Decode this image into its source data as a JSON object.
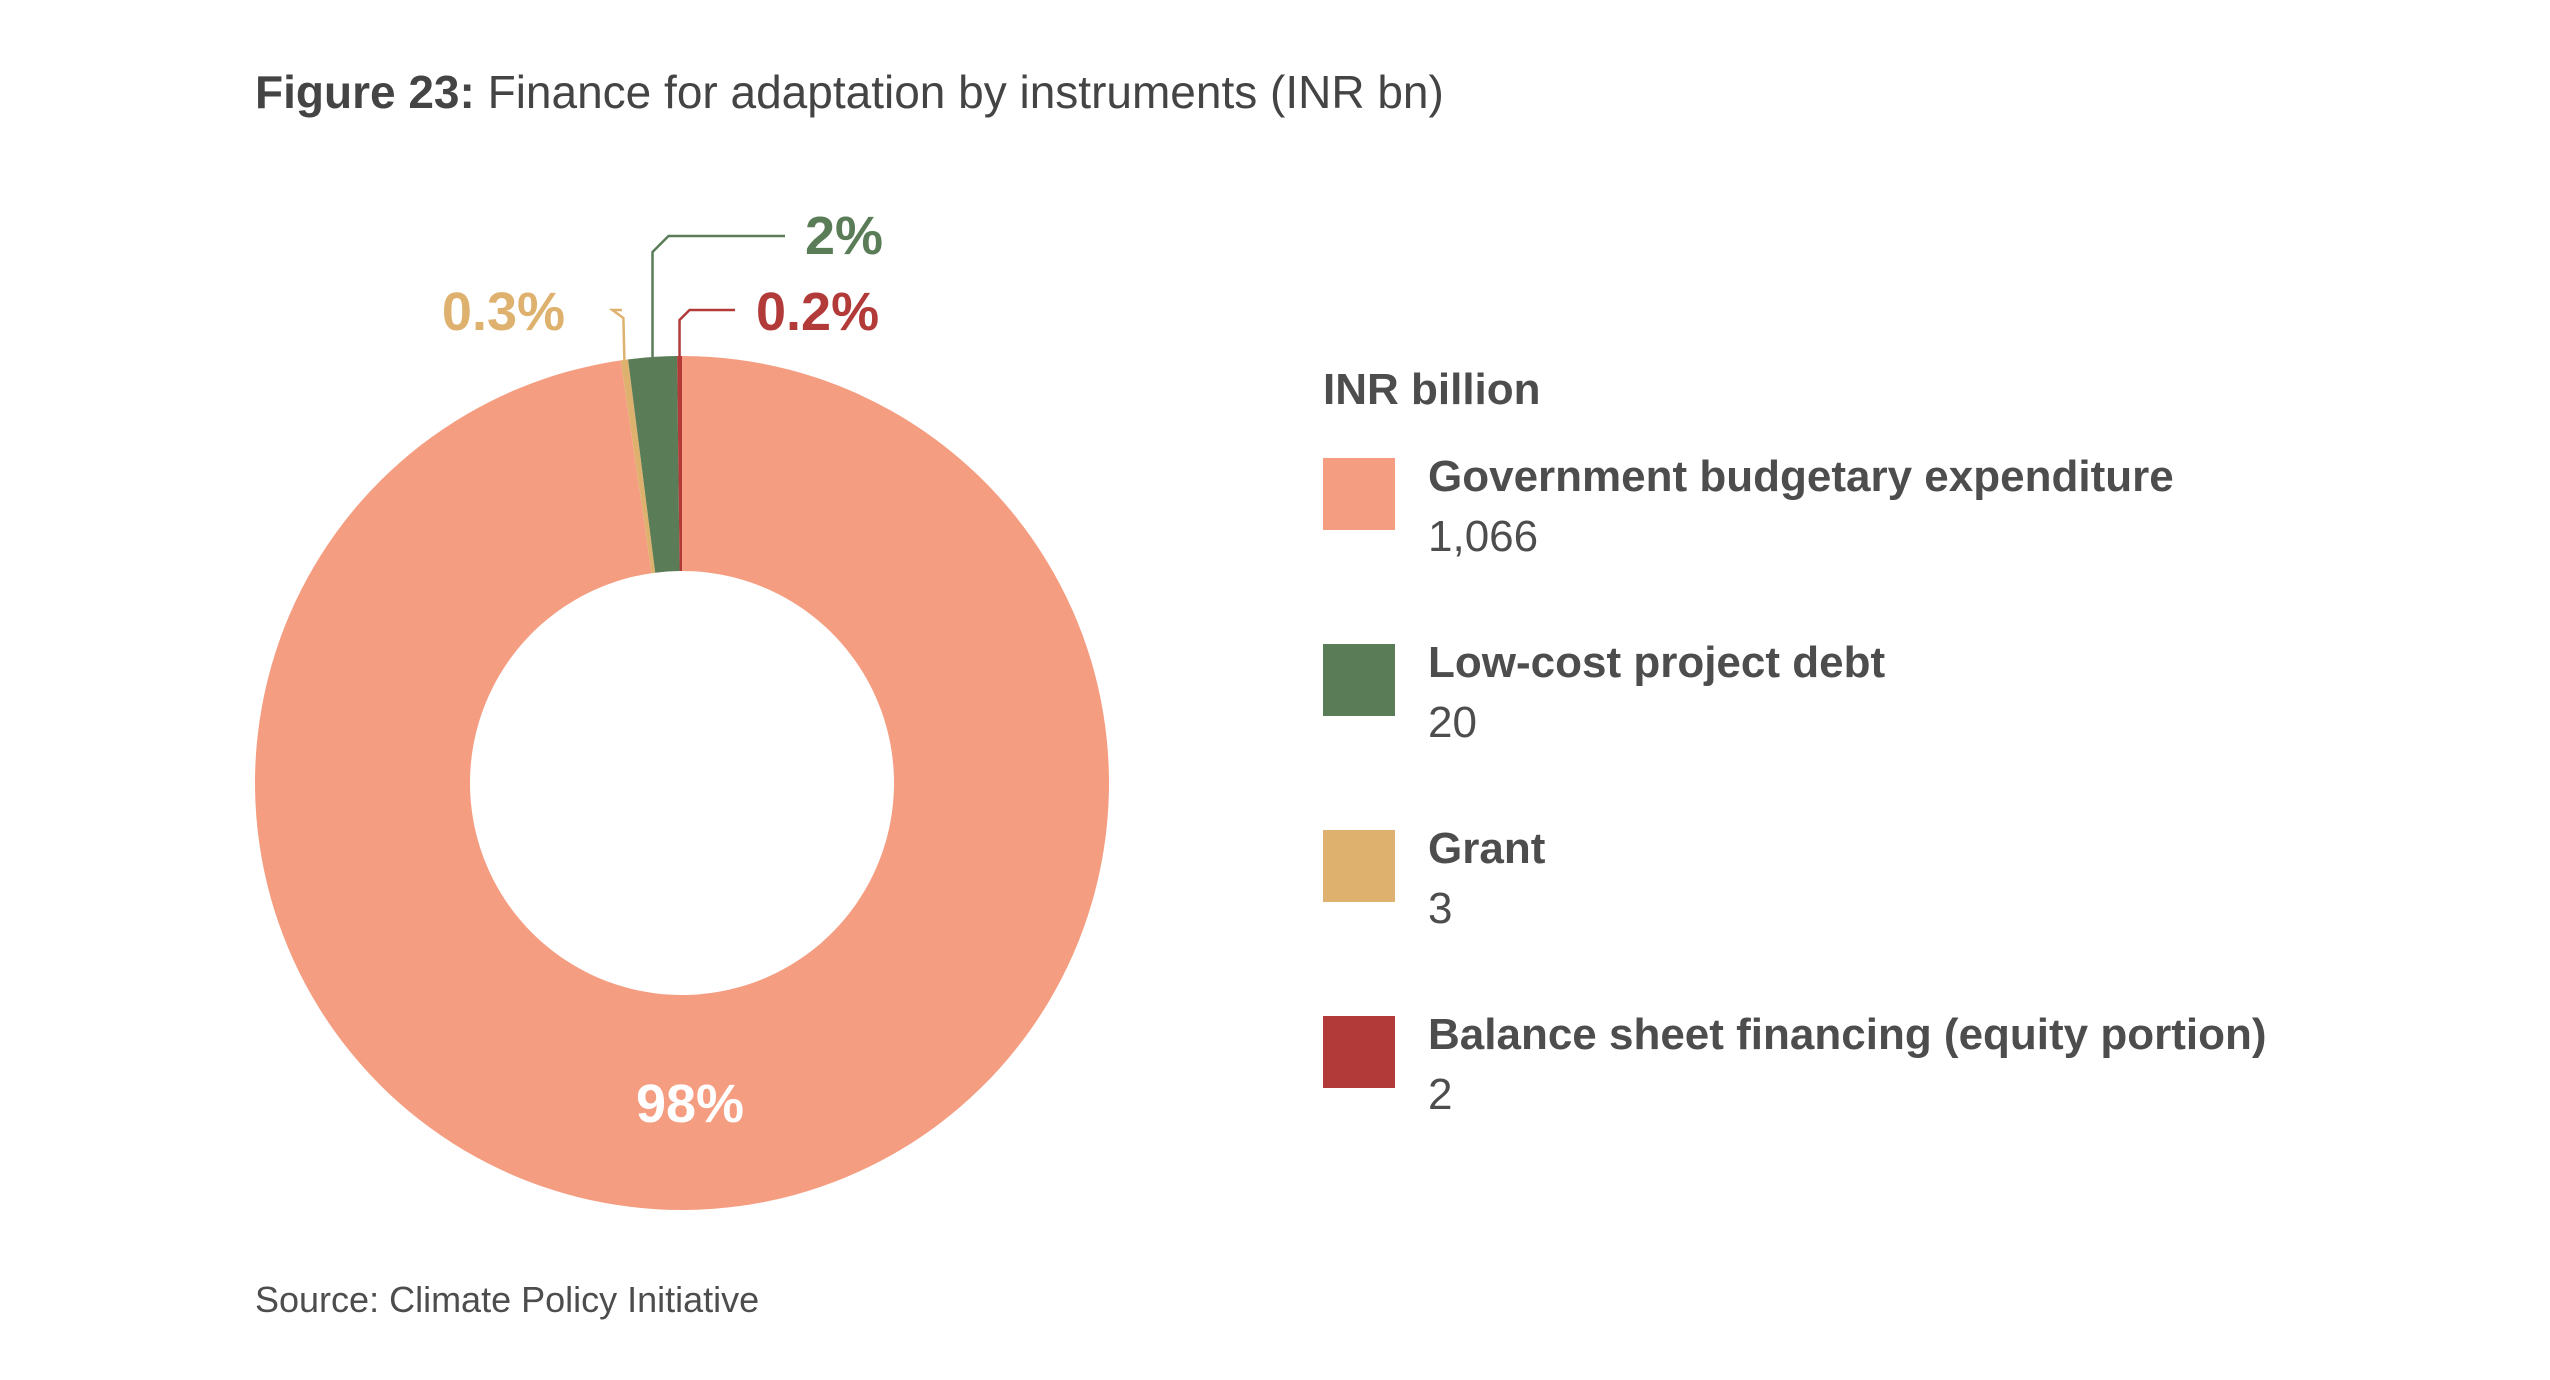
{
  "figure": {
    "label": "Figure 23:",
    "title": " Finance for adaptation by instruments (INR bn)"
  },
  "legend": {
    "title": "INR billion"
  },
  "source": "Source: Climate Policy Initiative",
  "chart_data": {
    "type": "pie",
    "variant": "donut",
    "unit": "INR billion",
    "legend_placement": "right",
    "slices": [
      {
        "name": "Government budgetary expenditure",
        "value": 1066,
        "value_label": "1,066",
        "percent_label": "98%",
        "color": "#f59d80"
      },
      {
        "name": "Low-cost project debt",
        "value": 20,
        "value_label": "20",
        "percent_label": "2%",
        "color": "#5a7d58"
      },
      {
        "name": "Grant",
        "value": 3,
        "value_label": "3",
        "percent_label": "0.3%",
        "color": "#deb26e"
      },
      {
        "name": "Balance sheet financing (equity portion)",
        "value": 2,
        "value_label": "2",
        "percent_label": "0.2%",
        "color": "#b23b3a"
      }
    ]
  }
}
